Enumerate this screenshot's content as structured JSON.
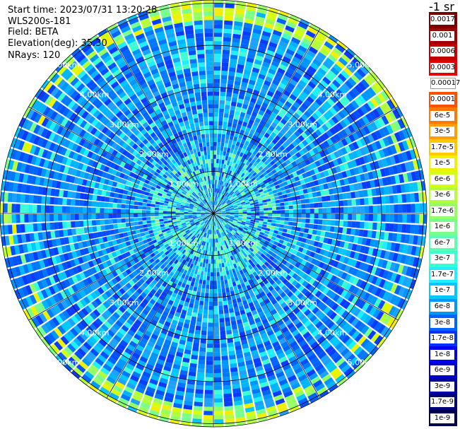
{
  "header": {
    "start_time": "Start time: 2023/07/31 13:20:28",
    "instrument": "WLS200s-181",
    "field": "Field: BETA",
    "elevation": "Elevation(deg): 35.30",
    "nrays": "NRays: 120"
  },
  "colorbar": {
    "unit": "-1 sr",
    "labels": [
      "0.0017",
      "0.001",
      "0.0006",
      "0.0003",
      "0.00017",
      "0.0001",
      "6e-5",
      "3e-5",
      "1.7e-5",
      "1e-5",
      "6e-6",
      "3e-6",
      "1.7e-6",
      "1e-6",
      "6e-7",
      "3e-7",
      "1.7e-7",
      "1e-7",
      "6e-8",
      "3e-8",
      "1.7e-8",
      "1e-8",
      "6e-9",
      "3e-9",
      "1.7e-9",
      "1e-9"
    ],
    "colors": [
      "#7a0000",
      "#a00000",
      "#c00000",
      "#e00000",
      "#ffffff",
      "#ff5000",
      "#ff7800",
      "#ffa000",
      "#ffc800",
      "#f0f000",
      "#d4ff14",
      "#b4ff3c",
      "#96ff64",
      "#78ff8c",
      "#5affb4",
      "#3cffd2",
      "#1ef0ff",
      "#00c8ff",
      "#0096ff",
      "#0064ff",
      "#0032ff",
      "#0000f0",
      "#0000c8",
      "#0000a0",
      "#000078",
      "#000050"
    ]
  },
  "chart_data": {
    "type": "heatmap",
    "projection": "polar PPI",
    "nrays": 120,
    "range_rings_km": [
      1,
      2,
      3,
      4,
      5
    ],
    "ring_labels": [
      "1.00km",
      "2.00km",
      "3.00km",
      "4.00km",
      "5.00km"
    ],
    "max_range_km": 5.1,
    "azimuth_grid_deg": [
      0,
      30,
      60,
      90,
      120,
      150,
      180,
      210,
      240,
      270,
      300,
      330
    ],
    "background_level": "1e-8",
    "enhanced_band_km": [
      4.6,
      5.2
    ],
    "enhanced_level": "1e-6"
  }
}
